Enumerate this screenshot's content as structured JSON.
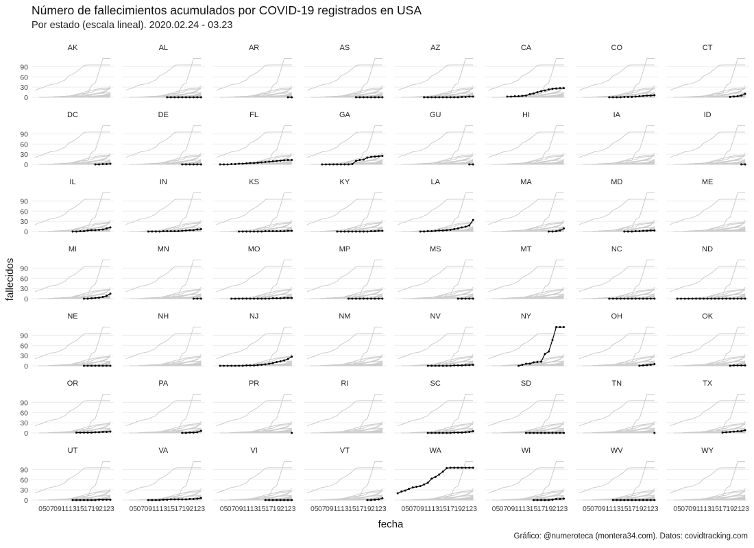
{
  "title": "Número de fallecimientos acumulados por COVID-19 registrados en USA",
  "subtitle": "Por estado (escala lineal). 2020.02.24 - 03.23",
  "caption": "Gráfico: @numeroteca (montera34.com). Datos: covidtracking.com",
  "colors": {
    "highlight": "#000000",
    "background_lines": "#cccccc",
    "grid": "#ebebeb"
  },
  "chart_data": {
    "type": "line",
    "facet_by": "state",
    "xlabel": "fecha",
    "ylabel": "fallecidos",
    "x_domain": [
      3,
      23
    ],
    "ylim": [
      0,
      115
    ],
    "yticks": [
      0,
      30,
      60,
      90
    ],
    "xticks": [
      "05",
      "07",
      "09",
      "11",
      "13",
      "15",
      "17",
      "19",
      "21",
      "23"
    ],
    "grid": true,
    "panels": [
      {
        "state": "AK",
        "x": [],
        "y": []
      },
      {
        "state": "AL",
        "x": [
          14,
          15,
          16,
          17,
          18,
          19,
          20,
          21,
          22,
          23
        ],
        "y": [
          0,
          0,
          0,
          0,
          0,
          0,
          0,
          0,
          0,
          0
        ]
      },
      {
        "state": "AR",
        "x": [
          22,
          23
        ],
        "y": [
          0,
          0
        ]
      },
      {
        "state": "AS",
        "x": [
          16,
          17,
          18,
          19,
          20,
          21,
          22,
          23
        ],
        "y": [
          0,
          0,
          0,
          0,
          0,
          0,
          0,
          0
        ]
      },
      {
        "state": "AZ",
        "x": [
          10,
          11,
          12,
          13,
          14,
          15,
          16,
          17,
          18,
          19,
          20,
          21,
          22,
          23
        ],
        "y": [
          0,
          0,
          0,
          0,
          0,
          0,
          0,
          0,
          0,
          0,
          1,
          1,
          2,
          2
        ]
      },
      {
        "state": "CA",
        "x": [
          8,
          9,
          10,
          11,
          12,
          13,
          14,
          15,
          16,
          17,
          18,
          19,
          20,
          21,
          22,
          23
        ],
        "y": [
          2,
          2,
          3,
          3,
          4,
          5,
          9,
          11,
          15,
          18,
          20,
          23,
          25,
          26,
          27,
          27
        ]
      },
      {
        "state": "CO",
        "x": [
          11,
          12,
          13,
          14,
          15,
          16,
          17,
          18,
          19,
          20,
          21,
          22,
          23
        ],
        "y": [
          0,
          0,
          0,
          0,
          1,
          1,
          1,
          2,
          3,
          4,
          5,
          5,
          6
        ]
      },
      {
        "state": "CT",
        "x": [
          19,
          20,
          21,
          22,
          23
        ],
        "y": [
          1,
          2,
          3,
          5,
          10
        ]
      },
      {
        "state": "DC",
        "x": [
          19,
          20,
          21,
          22,
          23
        ],
        "y": [
          0,
          0,
          1,
          1,
          2
        ]
      },
      {
        "state": "DE",
        "x": [
          18,
          19,
          20,
          21,
          22,
          23
        ],
        "y": [
          0,
          0,
          0,
          0,
          0,
          0
        ]
      },
      {
        "state": "FL",
        "x": [
          4,
          5,
          6,
          7,
          8,
          9,
          10,
          11,
          12,
          13,
          14,
          15,
          16,
          17,
          18,
          19,
          20,
          21,
          22,
          23
        ],
        "y": [
          0,
          0,
          0,
          1,
          1,
          2,
          2,
          3,
          4,
          4,
          5,
          6,
          7,
          8,
          9,
          10,
          11,
          12,
          13,
          13
        ]
      },
      {
        "state": "GA",
        "x": [
          7,
          8,
          9,
          10,
          11,
          12,
          13,
          14,
          15,
          16,
          17,
          18,
          19,
          20,
          21,
          22,
          23
        ],
        "y": [
          0,
          0,
          0,
          0,
          0,
          0,
          0,
          0,
          1,
          10,
          13,
          14,
          20,
          22,
          23,
          24,
          25
        ]
      },
      {
        "state": "GU",
        "x": [
          22,
          23
        ],
        "y": [
          0,
          0
        ]
      },
      {
        "state": "HI",
        "x": [],
        "y": []
      },
      {
        "state": "IA",
        "x": [],
        "y": []
      },
      {
        "state": "ID",
        "x": [
          22,
          23
        ],
        "y": [
          0,
          0
        ]
      },
      {
        "state": "IL",
        "x": [
          13,
          14,
          15,
          16,
          17,
          18,
          19,
          20,
          21,
          22,
          23
        ],
        "y": [
          0,
          0,
          1,
          1,
          3,
          4,
          4,
          5,
          6,
          9,
          12
        ]
      },
      {
        "state": "IN",
        "x": [
          9,
          10,
          11,
          12,
          13,
          14,
          15,
          16,
          17,
          18,
          19,
          20,
          21,
          22,
          23
        ],
        "y": [
          0,
          0,
          0,
          0,
          1,
          1,
          1,
          1,
          1,
          2,
          3,
          4,
          4,
          6,
          7
        ]
      },
      {
        "state": "KS",
        "x": [
          9,
          10,
          11,
          12,
          13,
          14,
          15,
          16,
          17,
          18,
          19,
          20,
          21,
          22,
          23
        ],
        "y": [
          0,
          0,
          0,
          0,
          0,
          0,
          0,
          1,
          1,
          1,
          1,
          1,
          1,
          2,
          2
        ]
      },
      {
        "state": "KY",
        "x": [
          11,
          12,
          13,
          14,
          15,
          16,
          17,
          18,
          19,
          20,
          21,
          22,
          23
        ],
        "y": [
          0,
          0,
          0,
          0,
          0,
          0,
          0,
          0,
          0,
          1,
          1,
          2,
          2
        ]
      },
      {
        "state": "LA",
        "x": [
          9,
          10,
          11,
          12,
          13,
          14,
          15,
          16,
          17,
          18,
          19,
          20,
          21,
          22,
          23
        ],
        "y": [
          0,
          0,
          1,
          1,
          2,
          3,
          3,
          4,
          5,
          7,
          9,
          12,
          14,
          18,
          34
        ]
      },
      {
        "state": "MA",
        "x": [
          19,
          20,
          21,
          22,
          23
        ],
        "y": [
          0,
          0,
          1,
          3,
          9
        ]
      },
      {
        "state": "MD",
        "x": [
          15,
          16,
          17,
          18,
          19,
          20,
          21,
          22,
          23
        ],
        "y": [
          0,
          0,
          0,
          1,
          1,
          2,
          2,
          3,
          3
        ]
      },
      {
        "state": "ME",
        "x": [],
        "y": []
      },
      {
        "state": "MI",
        "x": [
          16,
          17,
          18,
          19,
          20,
          21,
          22,
          23
        ],
        "y": [
          0,
          0,
          1,
          2,
          3,
          5,
          8,
          15
        ]
      },
      {
        "state": "MN",
        "x": [
          21,
          22,
          23
        ],
        "y": [
          0,
          0,
          0
        ]
      },
      {
        "state": "MO",
        "x": [
          7,
          8,
          9,
          10,
          11,
          12,
          13,
          14,
          15,
          16,
          17,
          18,
          19,
          20,
          21,
          22,
          23
        ],
        "y": [
          0,
          0,
          0,
          0,
          0,
          0,
          0,
          0,
          0,
          0,
          0,
          1,
          1,
          1,
          2,
          2,
          2
        ]
      },
      {
        "state": "MP",
        "x": [
          14,
          15,
          16,
          17,
          18,
          19,
          20,
          21,
          22,
          23
        ],
        "y": [
          0,
          0,
          0,
          0,
          0,
          0,
          0,
          0,
          0,
          0
        ]
      },
      {
        "state": "MS",
        "x": [
          19,
          20,
          21,
          22,
          23
        ],
        "y": [
          0,
          0,
          0,
          0,
          0
        ]
      },
      {
        "state": "MT",
        "x": [],
        "y": []
      },
      {
        "state": "NC",
        "x": [
          11,
          12,
          13,
          14,
          15,
          16,
          17,
          18,
          19,
          20,
          21,
          22,
          23
        ],
        "y": [
          0,
          0,
          0,
          0,
          0,
          0,
          0,
          0,
          0,
          0,
          0,
          0,
          0
        ]
      },
      {
        "state": "ND",
        "x": [
          5,
          6,
          7,
          8,
          9,
          10,
          11,
          12,
          13,
          14,
          15,
          16,
          17,
          18,
          19,
          20,
          21,
          22,
          23
        ],
        "y": [
          0,
          0,
          0,
          0,
          0,
          0,
          0,
          0,
          0,
          0,
          0,
          0,
          0,
          0,
          0,
          0,
          0,
          0,
          0
        ]
      },
      {
        "state": "NE",
        "x": [
          16,
          17,
          18,
          19,
          20,
          21,
          22,
          23
        ],
        "y": [
          0,
          0,
          0,
          0,
          0,
          0,
          0,
          0
        ]
      },
      {
        "state": "NH",
        "x": [],
        "y": []
      },
      {
        "state": "NJ",
        "x": [
          4,
          5,
          6,
          7,
          8,
          9,
          10,
          11,
          12,
          13,
          14,
          15,
          16,
          17,
          18,
          19,
          20,
          21,
          22,
          23
        ],
        "y": [
          0,
          0,
          0,
          0,
          0,
          0,
          0,
          1,
          1,
          1,
          2,
          3,
          4,
          6,
          8,
          11,
          13,
          16,
          20,
          27
        ]
      },
      {
        "state": "NM",
        "x": [],
        "y": []
      },
      {
        "state": "NV",
        "x": [
          11,
          12,
          13,
          14,
          15,
          16,
          17,
          18,
          19,
          20,
          21,
          22,
          23
        ],
        "y": [
          0,
          0,
          0,
          0,
          0,
          0,
          0,
          1,
          1,
          1,
          2,
          2,
          3
        ]
      },
      {
        "state": "NY",
        "x": [
          11,
          12,
          13,
          14,
          15,
          16,
          17,
          18,
          19,
          20,
          21,
          22,
          23
        ],
        "y": [
          0,
          3,
          6,
          6,
          10,
          11,
          12,
          35,
          42,
          76,
          114,
          114,
          114
        ]
      },
      {
        "state": "OH",
        "x": [
          19,
          20,
          21,
          22,
          23
        ],
        "y": [
          0,
          1,
          2,
          3,
          5
        ]
      },
      {
        "state": "OK",
        "x": [
          19,
          20,
          21,
          22,
          23
        ],
        "y": [
          0,
          1,
          1,
          1,
          1
        ]
      },
      {
        "state": "OR",
        "x": [
          14,
          15,
          16,
          17,
          18,
          19,
          20,
          21,
          22,
          23
        ],
        "y": [
          1,
          1,
          1,
          1,
          1,
          2,
          2,
          3,
          3,
          4
        ]
      },
      {
        "state": "PA",
        "x": [
          18,
          19,
          20,
          21,
          22,
          23
        ],
        "y": [
          0,
          0,
          1,
          1,
          2,
          6
        ]
      },
      {
        "state": "PR",
        "x": [
          23
        ],
        "y": [
          0
        ]
      },
      {
        "state": "RI",
        "x": [],
        "y": []
      },
      {
        "state": "SC",
        "x": [
          11,
          12,
          13,
          14,
          15,
          16,
          17,
          18,
          19,
          20,
          21,
          22,
          23
        ],
        "y": [
          0,
          0,
          0,
          0,
          0,
          0,
          0,
          1,
          1,
          1,
          2,
          3,
          5
        ]
      },
      {
        "state": "SD",
        "x": [
          13,
          14,
          15,
          16,
          17,
          18,
          19,
          20,
          21,
          22,
          23
        ],
        "y": [
          0,
          0,
          0,
          0,
          0,
          0,
          0,
          0,
          0,
          0,
          0
        ]
      },
      {
        "state": "TN",
        "x": [
          23
        ],
        "y": [
          0
        ]
      },
      {
        "state": "TX",
        "x": [
          17,
          18,
          19,
          20,
          21,
          22,
          23
        ],
        "y": [
          1,
          2,
          3,
          4,
          5,
          5,
          8
        ]
      },
      {
        "state": "UT",
        "x": [
          13,
          14,
          15,
          16,
          17,
          18,
          19,
          20,
          21,
          22,
          23
        ],
        "y": [
          0,
          0,
          0,
          0,
          0,
          0,
          0,
          1,
          1,
          1,
          1
        ]
      },
      {
        "state": "VA",
        "x": [
          9,
          10,
          11,
          12,
          13,
          14,
          15,
          16,
          17,
          18,
          19,
          20,
          21,
          22,
          23
        ],
        "y": [
          0,
          0,
          0,
          0,
          1,
          1,
          2,
          2,
          2,
          2,
          2,
          3,
          3,
          4,
          6
        ]
      },
      {
        "state": "VI",
        "x": [
          16,
          17,
          18,
          19,
          20,
          21,
          22,
          23
        ],
        "y": [
          0,
          0,
          0,
          0,
          0,
          0,
          0,
          0
        ]
      },
      {
        "state": "VT",
        "x": [
          19,
          20,
          21,
          22,
          23
        ],
        "y": [
          0,
          0,
          1,
          2,
          5
        ]
      },
      {
        "state": "WA",
        "x": [
          3,
          4,
          5,
          6,
          7,
          8,
          9,
          10,
          11,
          12,
          13,
          14,
          15,
          16,
          17,
          18,
          19,
          20,
          21,
          22,
          23
        ],
        "y": [
          20,
          25,
          28,
          33,
          37,
          39,
          41,
          46,
          51,
          63,
          68,
          75,
          84,
          94,
          95,
          95,
          95,
          95,
          95,
          95,
          95
        ]
      },
      {
        "state": "WI",
        "x": [
          15,
          16,
          17,
          18,
          19,
          20,
          21,
          22,
          23
        ],
        "y": [
          0,
          0,
          0,
          0,
          0,
          1,
          3,
          3,
          4
        ]
      },
      {
        "state": "WV",
        "x": [
          12,
          13,
          14,
          15,
          16,
          17,
          18,
          19,
          20,
          21,
          22,
          23
        ],
        "y": [
          0,
          0,
          0,
          0,
          0,
          0,
          0,
          0,
          0,
          0,
          0,
          0
        ]
      },
      {
        "state": "WY",
        "x": [],
        "y": []
      }
    ]
  }
}
